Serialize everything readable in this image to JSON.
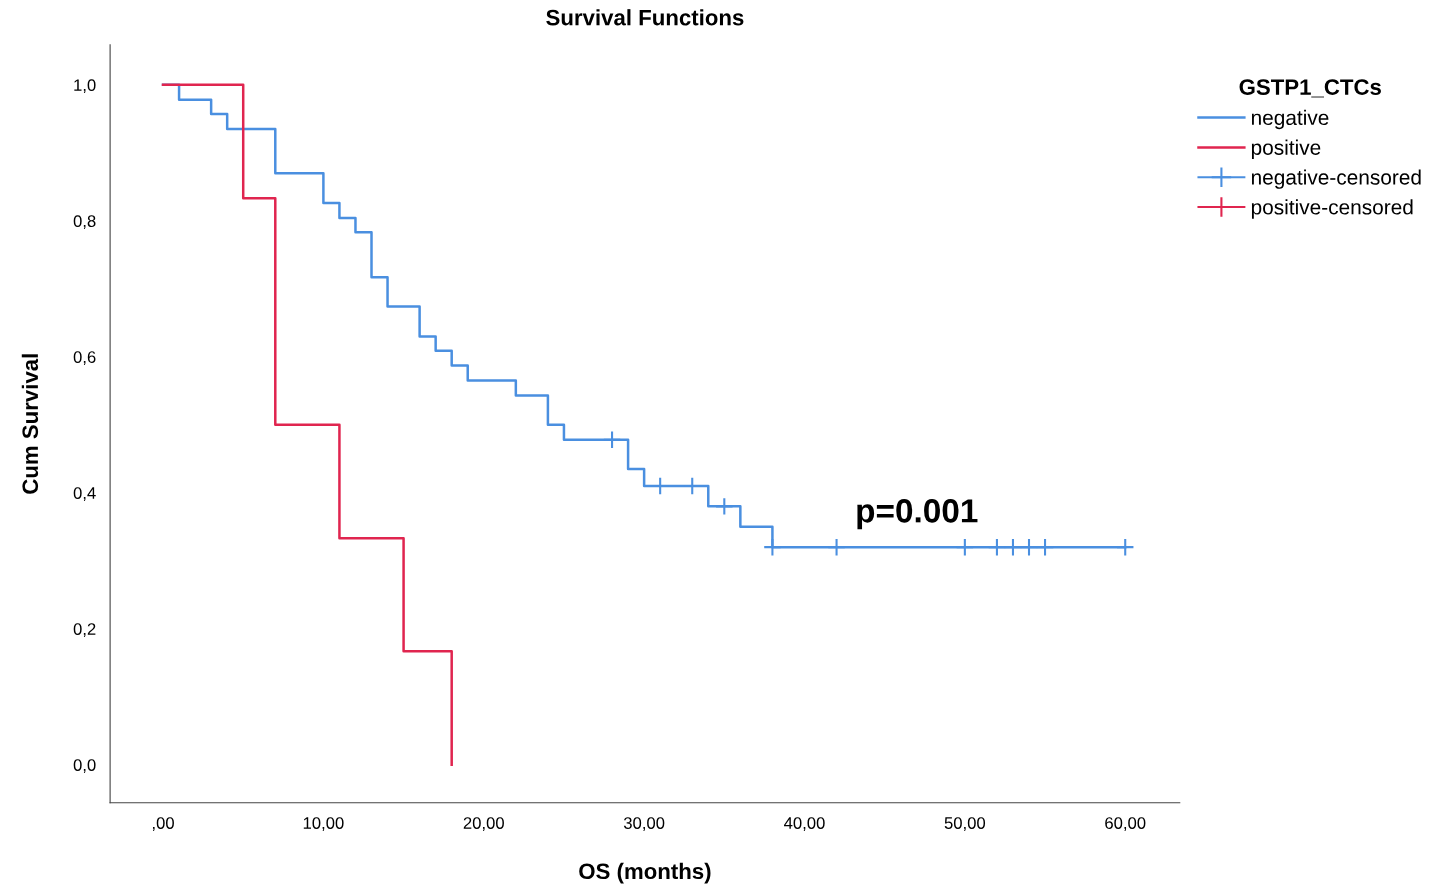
{
  "chart_data": {
    "type": "step",
    "title": "Survival Functions",
    "xlabel": "OS (months)",
    "ylabel": "Cum Survival",
    "legend_title": "GSTP1_CTCs",
    "series": [
      {
        "name": "negative",
        "color": "#4a8fe0",
        "x": [
          0,
          1,
          3,
          4,
          7,
          10,
          11,
          12,
          13,
          14,
          16,
          17,
          18,
          19,
          22,
          24,
          25,
          29,
          30,
          34,
          36,
          38,
          60
        ],
        "values": [
          1.0,
          0.978,
          0.957,
          0.935,
          0.87,
          0.826,
          0.804,
          0.783,
          0.717,
          0.674,
          0.63,
          0.609,
          0.587,
          0.565,
          0.543,
          0.5,
          0.478,
          0.435,
          0.41,
          0.38,
          0.35,
          0.32,
          0.32
        ]
      },
      {
        "name": "positive",
        "color": "#e0254f",
        "x": [
          0,
          5,
          7,
          11,
          15,
          18
        ],
        "values": [
          1.0,
          0.833,
          0.5,
          0.333,
          0.167,
          0.0
        ]
      },
      {
        "name": "negative-censored",
        "type": "scatter",
        "marker": "cross",
        "color": "#4a8fe0",
        "x": [
          28,
          31,
          33,
          35,
          38,
          42,
          50,
          52,
          53,
          54,
          55,
          60
        ],
        "values": [
          0.478,
          0.41,
          0.41,
          0.38,
          0.32,
          0.32,
          0.32,
          0.32,
          0.32,
          0.32,
          0.32,
          0.32
        ]
      },
      {
        "name": "positive-censored",
        "type": "scatter",
        "marker": "cross",
        "color": "#e0254f"
      }
    ],
    "xlim": [
      -3.3,
      63.4
    ],
    "ylim": [
      -0.056,
      1.059
    ],
    "xticks": [
      {
        "value": 0,
        "label": ",00"
      },
      {
        "value": 10,
        "label": "10,00"
      },
      {
        "value": 20,
        "label": "20,00"
      },
      {
        "value": 30,
        "label": "30,00"
      },
      {
        "value": 40,
        "label": "40,00"
      },
      {
        "value": 50,
        "label": "50,00"
      },
      {
        "value": 60,
        "label": "60,00"
      }
    ],
    "yticks": [
      {
        "value": 0,
        "label": "0,0"
      },
      {
        "value": 0.2,
        "label": "0,2"
      },
      {
        "value": 0.4,
        "label": "0,4"
      },
      {
        "value": 0.6,
        "label": "0,6"
      },
      {
        "value": 0.8,
        "label": "0,8"
      },
      {
        "value": 1.0,
        "label": "1,0"
      }
    ],
    "annotations": [
      "p=0.001"
    ],
    "legend": "right",
    "grid": false
  }
}
